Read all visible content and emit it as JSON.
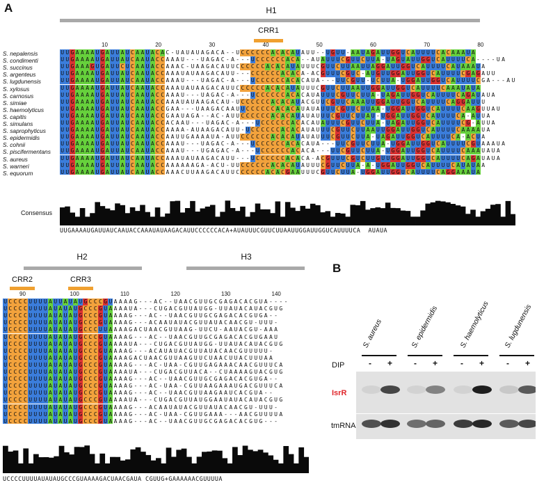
{
  "panelA": {
    "letter": "A",
    "regions": [
      {
        "label": "H1"
      },
      {
        "label": "H2"
      },
      {
        "label": "H3"
      }
    ],
    "crr": [
      {
        "label": "CRR1"
      },
      {
        "label": "CRR2"
      },
      {
        "label": "CRR3"
      }
    ],
    "positions_top": [
      "10",
      "20",
      "30",
      "40",
      "50",
      "60",
      "70",
      "80"
    ],
    "positions_bottom": [
      "90",
      "100",
      "110",
      "120",
      "130",
      "140"
    ],
    "species": [
      "S. nepalensis",
      "S. condimenti",
      "S. succinus",
      "S. argenteus",
      "S. lugdunensis",
      "S. xylosus",
      "S. carnosus",
      "S. simiae",
      "S. haemolyticus",
      "S. capitis",
      "S. simulans",
      "S. saprophyticus",
      "S. epidermidis",
      "S. cohnii",
      "S. piscifermentans",
      "S. aureus",
      "S. warneri",
      "S. equorum"
    ],
    "consensus_label": "Consensus",
    "consensus_top": "UUGAAAAUGAUUAUCAAUACCAAAUAUAAGACAUUCCCCCCACA+AUAUUUCGUUCUUAAUUGGAUUGGUCAUUUUCA  AUAUA",
    "consensus_bottom": "UCCCCUUUUAUAUAUGCCCGUAAAAGACUAACGAUA CGUUG+GAAAAAACGUUUUA",
    "seq_top": [
      "UUGAAAAUGAUUAUCAAUACAC-UAUAUAGACA--UCCCCCCACACAUAUU--UGUU-AAUAGAUUGGUCAUUUUCACAAAUA",
      "UUGAAAAUGAUUAUCAAUACCAAAU---UAGAC-A---UCCCCCCACA--AUAUUUCGUUCUUA-UAGUAUUGGUCAUUUUCA----UA",
      "UUGAAAGUGAUUCUCAAUACCAAAC-UAAGACAUUCCCCCCACACAUAUUUCGUUCUUAAUUAGGAUUGGUCAUUUUCAUAAAUA",
      "UUGAAAAUGAUUAUCAAUACCAAAUAUAAGACAUU---CCCCCCACACA-ACGUUUCGUC-AUGUUGGAUUGGUCAUUUUCGAGAUU",
      "UUGAAAAUGAUUAUCAAUACCAAAU---UAGAC-A---UCCCCCCACACAUA---UUCGUU-UCUUA-UGGAUUGGUCAUUUUCGA---AU",
      "UUGAAAAUGAUUAUCAAUACCAAAUAUAAGACAUUCCCCCCACACAUAUUUCGUUCUUAAUUGGAUUGGUCAUUUUCAAAUAUA",
      "UUGAAAAUGAUUAUCAAUACCAAAU---UAGAC-A---UCCCCCCACACAUAUUUCGUUCUUA-UAGAUUGGUCAUUUUCAGAUAUA",
      "UUGAAAAUGAUUAUCAAUACCAAAUAUAAGACAU-UCCCCCCACACAUACGUUCGUUCAAAUUGGAUUGGUCAUUUUCAGGAUUU",
      "UUGAAAAUGAUUAUCAAUACCGAA---UAAGACAAUUCCCCCCACACAUAUAUUUCGUUCUUAA-UGGAUUGGUCAUUUUCAAGUUAU",
      "UUGAAAAUGAUUAUCAAUACCGAAUAGA--AC-AUUCCCCCCACACAUAUAUUUCGUUCUUAU-UGGAUUGGUCAUUUUCA-AUUA",
      "UUGAAAAUGAUUAUCAAUACCACAAU---UAGAC-A---UCCCCCCACACAUAUUUCGUUCUUA-UAGAUUGGUCAUUUUCG-AUUA",
      "UUGAAAAUGAUUAUCAAUACCAAAA-AUAAGACAUU-UCCCCCCACACAUAUUUCGUUCUUAAUUGGAUUGGUCAUUUUCAAAAUA",
      "UUGAAAAUGAUUAUCAAUACCAAUUGAAAAUA-AUUCCCCCCACACAUAUAUUUCGUUCUUA-UAGAUUGGUCAUUUUCA-ACUA",
      "UUGAAAAUGAUUAUCAAUACCAAAU---UAGAC-A---UCCCCCCACACAUA---UUCGUUCUUA-UGGAUUGGUCAUUUUCGUAAAUA",
      "UUGAAAAUGAUUAUCAAUACCAAAU---UGAGAC-A---UCCCCCCACACA---UUCGUUCUUA-UGGAUUGGUCAUUUUCAAAUAUA",
      "UUGAAAAUGAUUAUCAAUACCAAAUAUAAGACAUU---UCCCCCCACACA-ACGUUUCGUCUUGUUGGAUUGGUCAUUUUCAGAUAUA",
      "UUGAAAAUGAUUAUCAAUACCAAAAAAGA-ACU-UUCCCCCCACACAUAUUUCGUUCUUA-A-UGGAUUGGUCAUUUUCAUAUAA",
      "UUGAAAAUGAUUAUCAAUACCAAACUUAAGACAUUCCCCCCACACGAAUUUCGUUCUUA-UGGAUUGGUCAUUUUCAGGAAAUA"
    ],
    "seq_bottom": [
      "UCCCCUUUUAUUAUAUGCCCGUAAAAG---AC--UAACGUUGCGAGACACGUA----",
      "UCCCCUUUUAUAUAUGCCCGUAAAAUA---CUGACGUUAUGG-UUAUACAUACGUG",
      "UCCCCUUUUAUAUAUGCCCGUAAAAG---AC--UAACGUUGCGAGACACGUGA--",
      "UCCCCUUUUAUAUAUGCCCGUAAAAG---ACAAUAUACGUUAUACAACGU-UUU-",
      "UCCCCUUUUAUAUAUGCCCUUAAAAGACUAACGUUAAG-UUCU-AAUACGU-AAA",
      "UCCCCUUUUAUAUAUGCCCGUAAAAG---AC--UAACGUUGCGAGACACGUGAAU",
      "UCCCCUUUUAUAUAUGCCCGUAAAAUA---CUGACGUUAUGG-UUAUACAUACGUG",
      "UCCCCUUUUAUAUAUGCCCGUAAAAG---ACAUAUACGUUAUACAACGUUUUU-",
      "UCCCCUUUUAUAUAUGCCCGUAAAAGACUAACGUUAAGUUCUAACUUACUUUAA",
      "UCCCCUUUUAUAUAUGCCCGUAAAAG---AC-UAA-CGUUGAGAAACAACGUUUCA",
      "UCCCCUUUUAUAUAUGCCCGUAAAAUA---CUGACGUUACA--CUAAAAGUACGUG",
      "UCCCCUUUUAUAUAUGCCCGUAAAAG---AC--UAACGUUGCGAGACACGUGA--",
      "UCCCCUUUUAUAUAUGCCCGUAAAAG---AC-UAA-CGUUAAGAAAUGACGUUUCA",
      "UCCCCUUUUAUAUAUGCCCGUAAAAG---AC--UAACGUUAAGAAUCACGUA--",
      "UCCCCUUUUAUAUAUGCCCGUAAAAUA---CUGACGUUAUGGAAUAUACAUACGUG",
      "UCCCCUUUUAUAUAUGCCCGUAAAAG---ACAAUAUACGUUAUACAACGU-UUU-",
      "UCCCCUUUUAUAUAUGCCCGUAAAAG---AC-UAA-CGUUGAAA---AACGUUUUA",
      "UCCCCUUUUAUAUAUGCCCGUAAAAG---AC--UAACGUUGCGAGACACGUG---"
    ]
  },
  "panelB": {
    "letter": "B",
    "species": [
      "S. aureus",
      "S. epidermidis",
      "S. haemolyticus",
      "S. lugdunensis"
    ],
    "dip_label": "DIP",
    "minus": "-",
    "plus": "+",
    "isrr_label": "IsrR",
    "isrr_color": "#e0262b",
    "tmrna_label": "tmRNA",
    "isrr_bands": [
      0.05,
      0.75,
      0.05,
      0.45,
      0.05,
      0.95,
      0.1,
      0.65
    ],
    "tmrna_bands": [
      0.7,
      0.85,
      0.55,
      0.6,
      0.8,
      0.9,
      0.65,
      0.75
    ]
  },
  "colors": {
    "U": "#3b7ddb",
    "G": "#d93232",
    "C": "#f2a23c",
    "A": "#66d13c",
    "region_bar": "#a9a9a9",
    "crr_bar": "#f0a030"
  }
}
